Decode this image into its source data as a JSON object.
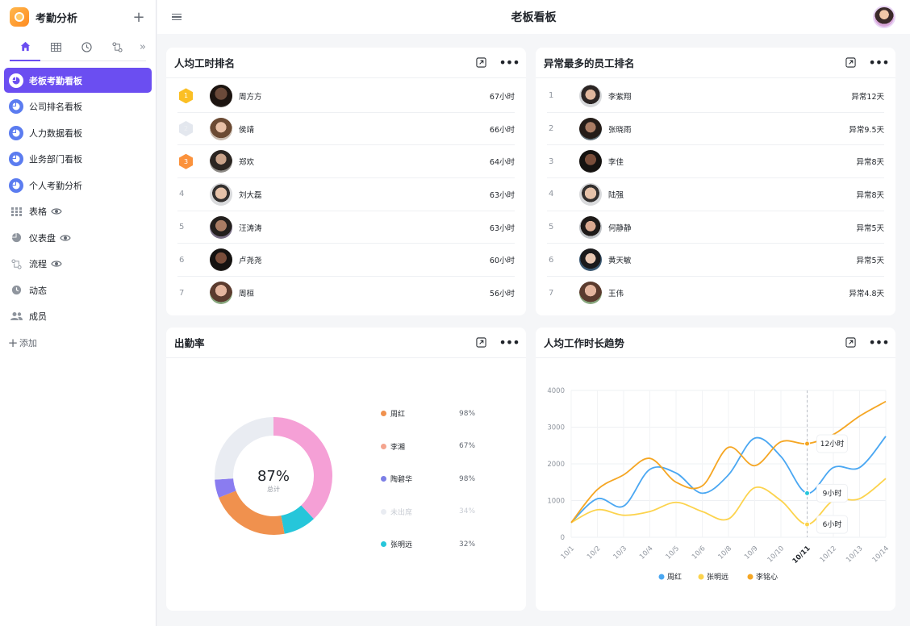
{
  "app": {
    "title": "考勤分析",
    "add_label": "+"
  },
  "header": {
    "title": "老板看板"
  },
  "sidebar": {
    "items": [
      {
        "label": "老板考勤看板",
        "icon": "pie-chart-icon",
        "active": true
      },
      {
        "label": "公司排名看板",
        "icon": "pie-chart-icon"
      },
      {
        "label": "人力数据看板",
        "icon": "pie-chart-icon"
      },
      {
        "label": "业务部门看板",
        "icon": "pie-chart-icon"
      },
      {
        "label": "个人考勤分析",
        "icon": "pie-chart-icon"
      },
      {
        "label": "表格",
        "icon": "grid-icon",
        "eye": true
      },
      {
        "label": "仪表盘",
        "icon": "dashboard-icon",
        "eye": true
      },
      {
        "label": "流程",
        "icon": "flow-icon",
        "eye": true
      },
      {
        "label": "动态",
        "icon": "clock-icon"
      },
      {
        "label": "成员",
        "icon": "members-icon"
      },
      {
        "label": "添加",
        "icon": "plus-icon"
      }
    ]
  },
  "cards": {
    "work_rank": {
      "title": "人均工时排名",
      "rows": [
        {
          "rank": "1",
          "name": "周方方",
          "value": "67小时",
          "medal": "gold"
        },
        {
          "rank": "2",
          "name": "侯靖",
          "value": "66小时",
          "medal": "silver"
        },
        {
          "rank": "3",
          "name": "郑欢",
          "value": "64小时",
          "medal": "bronze"
        },
        {
          "rank": "4",
          "name": "刘大磊",
          "value": "63小时"
        },
        {
          "rank": "5",
          "name": "汪涛涛",
          "value": "63小时"
        },
        {
          "rank": "6",
          "name": "卢尧尧",
          "value": "60小时"
        },
        {
          "rank": "7",
          "name": "周桓",
          "value": "56小时"
        }
      ]
    },
    "abnormal_rank": {
      "title": "异常最多的员工排名",
      "rows": [
        {
          "rank": "1",
          "name": "李紫翔",
          "value": "异常12天"
        },
        {
          "rank": "2",
          "name": "张晓雨",
          "value": "异常9.5天"
        },
        {
          "rank": "3",
          "name": "李佳",
          "value": "异常8天"
        },
        {
          "rank": "4",
          "name": "陆强",
          "value": "异常8天"
        },
        {
          "rank": "5",
          "name": "何静静",
          "value": "异常5天"
        },
        {
          "rank": "6",
          "name": "黄天敏",
          "value": "异常5天"
        },
        {
          "rank": "7",
          "name": "王伟",
          "value": "异常4.8天"
        }
      ]
    },
    "attendance": {
      "title": "出勤率",
      "center_value": "87%",
      "center_label": "总计"
    },
    "trend": {
      "title": "人均工作时长趋势"
    }
  },
  "chart_data": [
    {
      "type": "pie",
      "title": "出勤率",
      "labels": [
        "周红",
        "李湘",
        "陶碧华",
        "未出席",
        "张明远"
      ],
      "values": [
        98,
        67,
        98,
        34,
        32
      ],
      "value_labels": [
        "98%",
        "67%",
        "98%",
        "34%",
        "32%"
      ],
      "colors": [
        "#f0914e",
        "#f4a48e",
        "#7c7fe6",
        "#e9ecf2",
        "#26c6da"
      ],
      "segment_colors": [
        "#f5a0d6",
        "#26c6da",
        "#f0914e",
        "#8a7cf0",
        "#e9ecf2"
      ],
      "segment_values": [
        38,
        9,
        22,
        5,
        26
      ],
      "center_text": "87%"
    },
    {
      "type": "line",
      "title": "人均工作时长趋势",
      "x": [
        "10/1",
        "10/2",
        "10/3",
        "10/4",
        "10/5",
        "10/6",
        "10/8",
        "10/9",
        "10/10",
        "10/11",
        "10/12",
        "10/13",
        "10/14"
      ],
      "highlight_x": "10/11",
      "ylim": [
        0,
        4000
      ],
      "yticks": [
        0,
        1000,
        2000,
        3000,
        4000
      ],
      "grid": true,
      "legend_position": "bottom",
      "series": [
        {
          "name": "周红",
          "color": "#4aa7f2",
          "values": [
            400,
            1050,
            850,
            1850,
            1750,
            1200,
            1700,
            2700,
            2200,
            1200,
            1900,
            1900,
            2750
          ]
        },
        {
          "name": "张明远",
          "color": "#fcd34d",
          "values": [
            400,
            750,
            600,
            700,
            950,
            700,
            500,
            1350,
            1000,
            350,
            1000,
            1050,
            1600
          ]
        },
        {
          "name": "李铭心",
          "color": "#f5a623",
          "values": [
            400,
            1300,
            1700,
            2150,
            1500,
            1400,
            2450,
            1950,
            2600,
            2550,
            2800,
            3300,
            3700
          ]
        }
      ],
      "annotations": [
        {
          "x": "10/11",
          "text": "12小时"
        },
        {
          "x": "10/11",
          "text": "9小时"
        },
        {
          "x": "10/11",
          "text": "6小时"
        }
      ]
    }
  ]
}
